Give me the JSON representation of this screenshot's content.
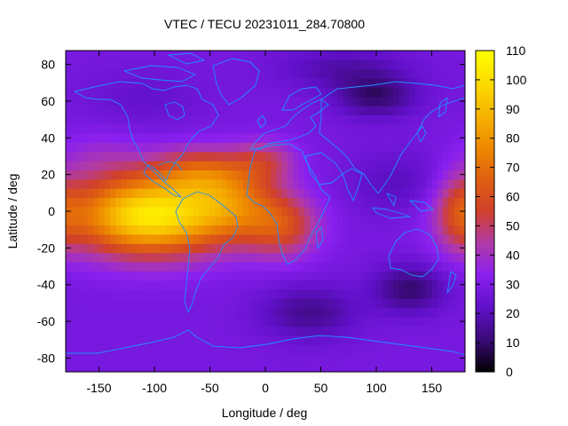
{
  "chart_data": {
    "type": "heatmap",
    "title": "VTEC / TECU 20231011_284.70800",
    "xlabel": "Longitude / deg",
    "ylabel": "Latitude / deg",
    "xlim": [
      -180,
      180
    ],
    "ylim": [
      -87.5,
      87.5
    ],
    "x_ticks": [
      -150,
      -100,
      -50,
      0,
      50,
      100,
      150
    ],
    "y_ticks": [
      -80,
      -60,
      -40,
      -20,
      0,
      20,
      40,
      60,
      80
    ],
    "colorbar": {
      "range": [
        0,
        110
      ],
      "ticks": [
        0,
        10,
        20,
        30,
        40,
        50,
        60,
        70,
        80,
        90,
        100,
        110
      ],
      "colors": [
        "#000000",
        "#3a0a78",
        "#6010c8",
        "#8a20f0",
        "#b03aa8",
        "#d0402a",
        "#e06010",
        "#ee8a00",
        "#f6b400",
        "#fcdc00",
        "#ffff00"
      ]
    },
    "grid": false,
    "lon_step": 5,
    "lat_step": 5,
    "features": [
      {
        "lon": -105,
        "lat": -2,
        "sigma_lon": 48,
        "sigma_lat": 15,
        "value": 75
      },
      {
        "lon": -60,
        "lat": 22,
        "sigma_lon": 32,
        "sigma_lat": 9,
        "value": 25
      },
      {
        "lon": -30,
        "lat": 5,
        "sigma_lon": 30,
        "sigma_lat": 14,
        "value": 30
      },
      {
        "lon": 15,
        "lat": -8,
        "sigma_lon": 24,
        "sigma_lat": 12,
        "value": 28
      },
      {
        "lon": 0,
        "lat": 28,
        "sigma_lon": 20,
        "sigma_lat": 8,
        "value": 18
      },
      {
        "lon": 175,
        "lat": 0,
        "sigma_lon": 15,
        "sigma_lat": 15,
        "value": 20
      },
      {
        "lon": -150,
        "lat": 30,
        "sigma_lon": 25,
        "sigma_lat": 10,
        "value": 8
      },
      {
        "lon": 100,
        "lat": 63,
        "sigma_lon": 25,
        "sigma_lat": 8,
        "value": -18
      },
      {
        "lon": 70,
        "lat": 78,
        "sigma_lon": 40,
        "sigma_lat": 8,
        "value": -10
      },
      {
        "lon": 130,
        "lat": -42,
        "sigma_lon": 22,
        "sigma_lat": 9,
        "value": -18
      },
      {
        "lon": 40,
        "lat": -55,
        "sigma_lon": 30,
        "sigma_lat": 10,
        "value": -14
      },
      {
        "lon": 120,
        "lat": 15,
        "sigma_lon": 30,
        "sigma_lat": 12,
        "value": -8
      },
      {
        "lon": -110,
        "lat": 62,
        "sigma_lon": 35,
        "sigma_lat": 10,
        "value": -5
      }
    ],
    "base_value": 28
  }
}
